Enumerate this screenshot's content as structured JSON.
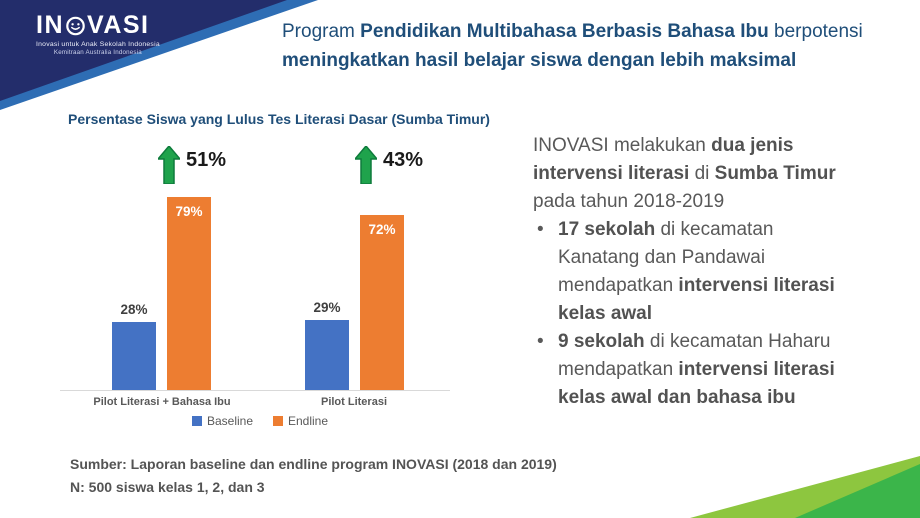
{
  "logo": {
    "prefix": "IN",
    "suffix": "VASI",
    "tagline1": "Inovasi untuk Anak Sekolah Indonesia",
    "tagline2": "Kemitraan Australia Indonesia"
  },
  "header": {
    "accent_navy": "#232D6B",
    "accent_blue": "#2E6DB4",
    "title_segments": [
      {
        "t": "Program ",
        "b": false
      },
      {
        "t": "Pendidikan Multibahasa Berbasis Bahasa Ibu",
        "b": true
      },
      {
        "t": " berpotensi",
        "b": false
      },
      {
        "br": true
      },
      {
        "t": "meningkatkan hasil belajar siswa dengan lebih maksimal",
        "b": true
      }
    ]
  },
  "chart_data": {
    "type": "bar",
    "title": "Persentase Siswa yang Lulus Tes Literasi Dasar (Sumba Timur)",
    "categories": [
      "Pilot Literasi + Bahasa Ibu",
      "Pilot Literasi"
    ],
    "series": [
      {
        "name": "Baseline",
        "color": "#4472C4",
        "values": [
          28,
          29
        ]
      },
      {
        "name": "Endline",
        "color": "#ED7D31",
        "values": [
          79,
          72
        ]
      }
    ],
    "value_suffix": "%",
    "annotations": [
      {
        "label": "51%",
        "icon": "up-arrow",
        "color": "#1FA34C",
        "outline": "#0E7B3C"
      },
      {
        "label": "43%",
        "icon": "up-arrow",
        "color": "#1FA34C",
        "outline": "#0E7B3C"
      }
    ],
    "ylim": [
      0,
      100
    ],
    "grid": false,
    "legend_position": "bottom",
    "axis_color": "#D9D9D9"
  },
  "right_panel": {
    "intro_segments": [
      {
        "t": "INOVASI melakukan ",
        "b": false
      },
      {
        "t": "dua jenis",
        "b": true
      },
      {
        "br": true
      },
      {
        "t": "intervensi literasi",
        "b": true
      },
      {
        "t": " di ",
        "b": false
      },
      {
        "t": "Sumba Timur",
        "b": true
      },
      {
        "br": true
      },
      {
        "t": "pada tahun 2018-2019",
        "b": false
      }
    ],
    "bullets": [
      [
        {
          "t": "17 sekolah",
          "b": true
        },
        {
          "t": " di kecamatan",
          "b": false
        },
        {
          "br": true
        },
        {
          "t": "Kanatang dan Pandawai",
          "b": false
        },
        {
          "br": true
        },
        {
          "t": "mendapatkan ",
          "b": false
        },
        {
          "t": "intervensi literasi",
          "b": true
        },
        {
          "br": true
        },
        {
          "t": "kelas awal",
          "b": true
        }
      ],
      [
        {
          "t": "9 sekolah",
          "b": true
        },
        {
          "t": " di kecamatan Haharu",
          "b": false
        },
        {
          "br": true
        },
        {
          "t": "mendapatkan ",
          "b": false
        },
        {
          "t": "intervensi literasi",
          "b": true
        },
        {
          "br": true
        },
        {
          "t": "kelas awal dan bahasa ibu",
          "b": true
        }
      ]
    ]
  },
  "footer": {
    "source": "Sumber: Laporan baseline dan endline program INOVASI (2018 dan 2019)",
    "sample": "N: 500 siswa kelas 1, 2, dan 3"
  },
  "decor": {
    "green_light": "#8DC63F",
    "green_dark": "#3BB54A"
  }
}
